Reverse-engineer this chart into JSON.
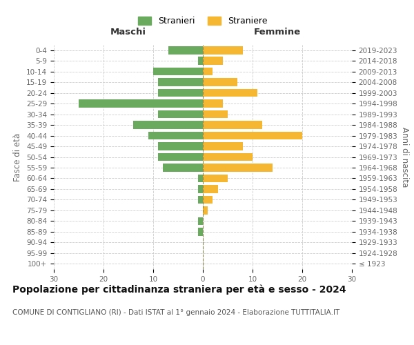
{
  "age_groups": [
    "100+",
    "95-99",
    "90-94",
    "85-89",
    "80-84",
    "75-79",
    "70-74",
    "65-69",
    "60-64",
    "55-59",
    "50-54",
    "45-49",
    "40-44",
    "35-39",
    "30-34",
    "25-29",
    "20-24",
    "15-19",
    "10-14",
    "5-9",
    "0-4"
  ],
  "birth_years": [
    "≤ 1923",
    "1924-1928",
    "1929-1933",
    "1934-1938",
    "1939-1943",
    "1944-1948",
    "1949-1953",
    "1954-1958",
    "1959-1963",
    "1964-1968",
    "1969-1973",
    "1974-1978",
    "1979-1983",
    "1984-1988",
    "1989-1993",
    "1994-1998",
    "1999-2003",
    "2004-2008",
    "2009-2013",
    "2014-2018",
    "2019-2023"
  ],
  "males": [
    0,
    0,
    0,
    1,
    1,
    0,
    1,
    1,
    1,
    8,
    9,
    9,
    11,
    14,
    9,
    25,
    9,
    9,
    10,
    1,
    7
  ],
  "females": [
    0,
    0,
    0,
    0,
    0,
    1,
    2,
    3,
    5,
    14,
    10,
    8,
    20,
    12,
    5,
    4,
    11,
    7,
    2,
    4,
    8
  ],
  "male_color": "#6aaa5e",
  "female_color": "#f5b731",
  "bar_height": 0.75,
  "xlim": 30,
  "title": "Popolazione per cittadinanza straniera per età e sesso - 2024",
  "subtitle": "COMUNE DI CONTIGLIANO (RI) - Dati ISTAT al 1° gennaio 2024 - Elaborazione TUTTITALIA.IT",
  "xlabel_left": "Maschi",
  "xlabel_right": "Femmine",
  "ylabel_left": "Fasce di età",
  "ylabel_right": "Anni di nascita",
  "legend_stranieri": "Stranieri",
  "legend_straniere": "Straniere",
  "background_color": "#ffffff",
  "grid_color": "#cccccc",
  "title_fontsize": 10,
  "subtitle_fontsize": 7.5,
  "label_fontsize": 8.5,
  "tick_fontsize": 7.5,
  "axis_label_color": "#666666"
}
